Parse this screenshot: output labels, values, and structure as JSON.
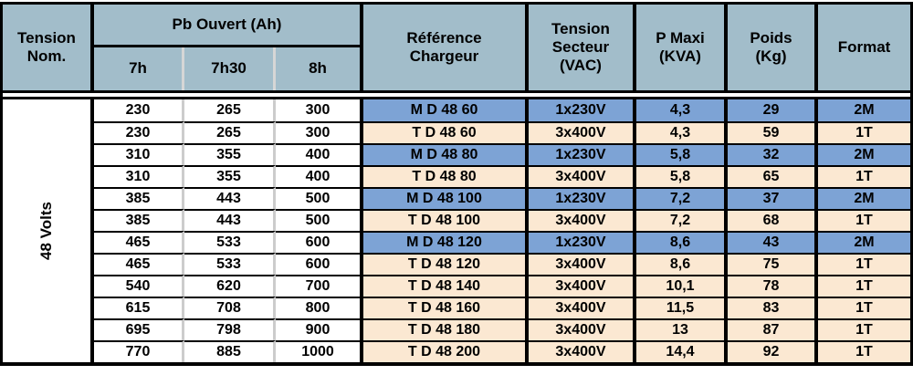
{
  "colors": {
    "header_bg": "#a2bdca",
    "mono_row_bg": "#7da3d5",
    "tri_row_bg": "#fbe8d2",
    "pb_separator": "#cccccc",
    "border": "#000000"
  },
  "table": {
    "header": {
      "tension_nom": "Tension\nNom.",
      "pb_ouvert": "Pb Ouvert (Ah)",
      "sub_7h": "7h",
      "sub_7h30": "7h30",
      "sub_8h": "8h",
      "reference": "Référence\nChargeur",
      "tension_secteur": "Tension\nSecteur\n(VAC)",
      "p_maxi": "P Maxi\n(KVA)",
      "poids": "Poids\n(Kg)",
      "format": "Format"
    },
    "group_label": "48 Volts",
    "rows": [
      {
        "pb_7h": "230",
        "pb_7h30": "265",
        "pb_8h": "300",
        "reference": "M D 48 60",
        "tension_secteur": "1x230V",
        "p_maxi": "4,3",
        "poids": "29",
        "format": "2M",
        "type": "mono"
      },
      {
        "pb_7h": "230",
        "pb_7h30": "265",
        "pb_8h": "300",
        "reference": "T D 48 60",
        "tension_secteur": "3x400V",
        "p_maxi": "4,3",
        "poids": "59",
        "format": "1T",
        "type": "tri"
      },
      {
        "pb_7h": "310",
        "pb_7h30": "355",
        "pb_8h": "400",
        "reference": "M D 48 80",
        "tension_secteur": "1x230V",
        "p_maxi": "5,8",
        "poids": "32",
        "format": "2M",
        "type": "mono"
      },
      {
        "pb_7h": "310",
        "pb_7h30": "355",
        "pb_8h": "400",
        "reference": "T D 48 80",
        "tension_secteur": "3x400V",
        "p_maxi": "5,8",
        "poids": "65",
        "format": "1T",
        "type": "tri"
      },
      {
        "pb_7h": "385",
        "pb_7h30": "443",
        "pb_8h": "500",
        "reference": "M D 48 100",
        "tension_secteur": "1x230V",
        "p_maxi": "7,2",
        "poids": "37",
        "format": "2M",
        "type": "mono"
      },
      {
        "pb_7h": "385",
        "pb_7h30": "443",
        "pb_8h": "500",
        "reference": "T D 48 100",
        "tension_secteur": "3x400V",
        "p_maxi": "7,2",
        "poids": "68",
        "format": "1T",
        "type": "tri"
      },
      {
        "pb_7h": "465",
        "pb_7h30": "533",
        "pb_8h": "600",
        "reference": "M D 48 120",
        "tension_secteur": "1x230V",
        "p_maxi": "8,6",
        "poids": "43",
        "format": "2M",
        "type": "mono"
      },
      {
        "pb_7h": "465",
        "pb_7h30": "533",
        "pb_8h": "600",
        "reference": "T D 48 120",
        "tension_secteur": "3x400V",
        "p_maxi": "8,6",
        "poids": "75",
        "format": "1T",
        "type": "tri"
      },
      {
        "pb_7h": "540",
        "pb_7h30": "620",
        "pb_8h": "700",
        "reference": "T D 48 140",
        "tension_secteur": "3x400V",
        "p_maxi": "10,1",
        "poids": "78",
        "format": "1T",
        "type": "tri"
      },
      {
        "pb_7h": "615",
        "pb_7h30": "708",
        "pb_8h": "800",
        "reference": "T D 48 160",
        "tension_secteur": "3x400V",
        "p_maxi": "11,5",
        "poids": "83",
        "format": "1T",
        "type": "tri"
      },
      {
        "pb_7h": "695",
        "pb_7h30": "798",
        "pb_8h": "900",
        "reference": "T D 48 180",
        "tension_secteur": "3x400V",
        "p_maxi": "13",
        "poids": "87",
        "format": "1T",
        "type": "tri"
      },
      {
        "pb_7h": "770",
        "pb_7h30": "885",
        "pb_8h": "1000",
        "reference": "T D 48 200",
        "tension_secteur": "3x400V",
        "p_maxi": "14,4",
        "poids": "92",
        "format": "1T",
        "type": "tri"
      }
    ]
  }
}
